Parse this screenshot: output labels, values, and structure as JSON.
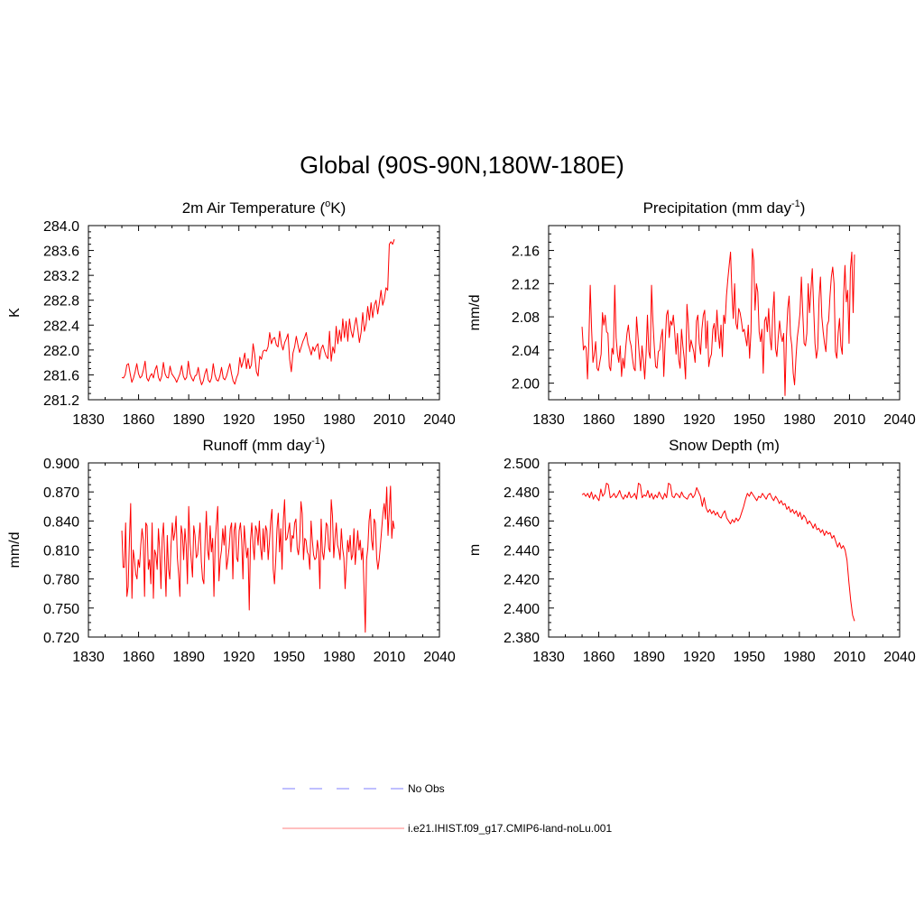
{
  "title": "Global (90S-90N,180W-180E)",
  "colors": {
    "model_line": "#ff0000",
    "obs_line": "#9999ff",
    "axis": "#000000"
  },
  "legend": [
    {
      "label": "No Obs",
      "style": "dashed",
      "color": "#9999ff"
    },
    {
      "label": "i.e21.IHIST.f09_g17.CMIP6-land-noLu.001",
      "style": "solid",
      "color": "#ff0000"
    }
  ],
  "chart_data": [
    {
      "type": "line",
      "title_main": "2m Air Temperature (",
      "title_sup": "o",
      "title_tail": "K)",
      "ylabel": "K",
      "xlim": [
        1830,
        2040
      ],
      "ylim": [
        281.2,
        284.0
      ],
      "xticks": [
        1830,
        1860,
        1890,
        1920,
        1950,
        1980,
        2010,
        2040
      ],
      "yticks": [
        "281.2",
        "281.6",
        "282.0",
        "282.4",
        "282.8",
        "283.2",
        "283.6",
        "284.0"
      ],
      "series": [
        {
          "x_start": 1850,
          "values": [
            281.56,
            281.55,
            281.6,
            281.76,
            281.78,
            281.62,
            281.48,
            281.55,
            281.65,
            281.78,
            281.62,
            281.55,
            281.58,
            281.68,
            281.82,
            281.55,
            281.5,
            281.58,
            281.62,
            281.55,
            281.68,
            281.75,
            281.56,
            281.5,
            281.58,
            281.8,
            281.62,
            281.56,
            281.55,
            281.74,
            281.62,
            281.58,
            281.54,
            281.48,
            281.55,
            281.62,
            281.75,
            281.58,
            281.52,
            281.56,
            281.82,
            281.62,
            281.55,
            281.5,
            281.58,
            281.6,
            281.72,
            281.54,
            281.44,
            281.5,
            281.62,
            281.7,
            281.52,
            281.48,
            281.55,
            281.78,
            281.6,
            281.52,
            281.5,
            281.58,
            281.72,
            281.55,
            281.52,
            281.58,
            281.68,
            281.78,
            281.62,
            281.5,
            281.45,
            281.55,
            281.62,
            281.88,
            281.72,
            281.82,
            281.95,
            281.7,
            281.86,
            281.7,
            281.76,
            282.1,
            281.92,
            281.65,
            281.58,
            281.9,
            281.85,
            281.98,
            282.0,
            281.98,
            282.05,
            282.28,
            282.1,
            282.18,
            282.2,
            282.08,
            282.05,
            282.3,
            282.1,
            282.0,
            282.12,
            282.18,
            282.26,
            281.85,
            281.65,
            281.95,
            282.05,
            282.22,
            282.08,
            281.96,
            282.05,
            282.14,
            282.2,
            282.28,
            282.1,
            282.02,
            281.92,
            282.05,
            281.98,
            282.06,
            282.1,
            281.85,
            282.02,
            282.08,
            281.98,
            281.9,
            281.86,
            282.3,
            281.82,
            282.05,
            281.95,
            282.38,
            282.1,
            282.32,
            282.14,
            282.5,
            282.2,
            282.46,
            282.14,
            282.5,
            282.3,
            282.2,
            282.38,
            282.52,
            282.34,
            282.12,
            282.28,
            282.6,
            282.3,
            282.42,
            282.7,
            282.48,
            282.76,
            282.52,
            282.72,
            282.8,
            282.58,
            282.76,
            282.96,
            282.72,
            282.82,
            283.0,
            282.96,
            283.7,
            283.74,
            283.7,
            283.78
          ]
        }
      ]
    },
    {
      "type": "line",
      "title_main": "Precipitation (mm day",
      "title_sup": "-1",
      "title_tail": ")",
      "ylabel": "mm/d",
      "xlim": [
        1830,
        2040
      ],
      "ylim": [
        1.98,
        2.19
      ],
      "xticks": [
        1830,
        1860,
        1890,
        1920,
        1950,
        1980,
        2010,
        2040
      ],
      "yticks": [
        "2.00",
        "2.04",
        "2.08",
        "2.12",
        "2.16"
      ],
      "series": [
        {
          "x_start": 1850,
          "values": [
            2.068,
            2.04,
            2.045,
            2.043,
            2.005,
            2.05,
            2.118,
            2.065,
            2.025,
            2.035,
            2.05,
            2.018,
            2.015,
            2.025,
            2.035,
            2.085,
            2.07,
            2.082,
            2.062,
            2.06,
            2.02,
            2.015,
            2.042,
            2.035,
            2.118,
            2.055,
            2.035,
            2.025,
            2.045,
            2.008,
            2.03,
            2.018,
            2.042,
            2.06,
            2.07,
            2.052,
            2.045,
            2.03,
            2.018,
            2.015,
            2.08,
            2.058,
            2.035,
            2.015,
            2.045,
            2.028,
            2.005,
            2.035,
            2.082,
            2.038,
            2.03,
            2.118,
            2.075,
            2.045,
            2.02,
            2.018,
            2.038,
            2.04,
            2.055,
            2.065,
            2.008,
            2.048,
            2.082,
            2.088,
            2.055,
            2.075,
            2.07,
            2.082,
            2.062,
            2.035,
            2.06,
            2.028,
            2.018,
            2.065,
            2.045,
            2.03,
            2.005,
            2.095,
            2.072,
            2.038,
            2.052,
            2.045,
            2.038,
            2.025,
            2.075,
            2.082,
            2.048,
            2.035,
            2.065,
            2.082,
            2.088,
            2.042,
            2.075,
            2.02,
            2.03,
            2.035,
            2.065,
            2.072,
            2.05,
            2.088,
            2.06,
            2.042,
            2.07,
            2.032,
            2.082,
            2.072,
            2.105,
            2.125,
            2.142,
            2.158,
            2.11,
            2.078,
            2.12,
            2.072,
            2.065,
            2.09,
            2.085,
            2.075,
            2.062,
            2.065,
            2.055,
            2.045,
            2.07,
            2.03,
            2.062,
            2.162,
            2.148,
            2.088,
            2.12,
            2.11,
            2.062,
            2.05,
            2.065,
            2.012,
            2.075,
            2.08,
            2.062,
            2.09,
            2.055,
            2.04,
            2.085,
            2.11,
            2.042,
            2.032,
            2.055,
            2.075,
            2.058,
            2.05,
            2.06,
            1.985,
            2.055,
            2.09,
            2.105,
            2.058,
            2.045,
            2.012,
            1.998,
            2.03,
            2.055,
            2.068,
            2.085,
            2.128,
            2.085,
            2.048,
            2.045,
            2.06,
            2.12,
            2.085,
            2.112,
            2.138,
            2.092,
            2.048,
            2.03,
            2.042,
            2.102,
            2.128,
            2.08,
            2.062,
            2.048,
            2.038,
            2.07,
            2.075,
            2.105,
            2.128,
            2.14,
            2.12,
            2.038,
            2.03,
            2.06,
            2.078,
            2.045,
            2.035,
            2.105,
            2.142,
            2.098,
            2.112,
            2.048,
            2.138,
            2.158,
            2.085,
            2.155
          ]
        }
      ]
    },
    {
      "type": "line",
      "title_main": "Runoff (mm day",
      "title_sup": "-1",
      "title_tail": ")",
      "ylabel": "mm/d",
      "xlim": [
        1830,
        2040
      ],
      "ylim": [
        0.72,
        0.9
      ],
      "xticks": [
        1830,
        1860,
        1890,
        1920,
        1950,
        1980,
        2010,
        2040
      ],
      "yticks": [
        "0.720",
        "0.750",
        "0.780",
        "0.810",
        "0.840",
        "0.870",
        "0.900"
      ],
      "series": [
        {
          "x_start": 1850,
          "values": [
            0.83,
            0.792,
            0.792,
            0.838,
            0.762,
            0.772,
            0.82,
            0.858,
            0.76,
            0.81,
            0.8,
            0.785,
            0.78,
            0.8,
            0.792,
            0.815,
            0.832,
            0.82,
            0.762,
            0.838,
            0.835,
            0.79,
            0.8,
            0.775,
            0.838,
            0.76,
            0.81,
            0.805,
            0.79,
            0.832,
            0.81,
            0.77,
            0.822,
            0.838,
            0.8,
            0.762,
            0.825,
            0.79,
            0.78,
            0.815,
            0.838,
            0.82,
            0.828,
            0.845,
            0.802,
            0.785,
            0.762,
            0.835,
            0.826,
            0.8,
            0.832,
            0.815,
            0.775,
            0.855,
            0.818,
            0.8,
            0.782,
            0.835,
            0.825,
            0.802,
            0.805,
            0.82,
            0.838,
            0.798,
            0.78,
            0.775,
            0.82,
            0.85,
            0.81,
            0.8,
            0.835,
            0.808,
            0.822,
            0.762,
            0.818,
            0.838,
            0.855,
            0.778,
            0.8,
            0.81,
            0.832,
            0.815,
            0.835,
            0.79,
            0.8,
            0.812,
            0.832,
            0.838,
            0.78,
            0.83,
            0.838,
            0.802,
            0.798,
            0.83,
            0.838,
            0.82,
            0.78,
            0.835,
            0.818,
            0.802,
            0.812,
            0.748,
            0.82,
            0.838,
            0.815,
            0.8,
            0.835,
            0.83,
            0.815,
            0.84,
            0.812,
            0.8,
            0.832,
            0.808,
            0.835,
            0.83,
            0.8,
            0.818,
            0.84,
            0.852,
            0.79,
            0.775,
            0.8,
            0.832,
            0.848,
            0.808,
            0.832,
            0.79,
            0.84,
            0.862,
            0.82,
            0.822,
            0.83,
            0.838,
            0.808,
            0.825,
            0.822,
            0.838,
            0.842,
            0.812,
            0.805,
            0.82,
            0.86,
            0.848,
            0.8,
            0.822,
            0.82,
            0.808,
            0.805,
            0.79,
            0.84,
            0.82,
            0.805,
            0.8,
            0.802,
            0.82,
            0.808,
            0.77,
            0.842,
            0.808,
            0.8,
            0.815,
            0.838,
            0.835,
            0.812,
            0.808,
            0.862,
            0.845,
            0.802,
            0.822,
            0.838,
            0.815,
            0.81,
            0.8,
            0.832,
            0.812,
            0.802,
            0.77,
            0.795,
            0.82,
            0.808,
            0.825,
            0.8,
            0.805,
            0.832,
            0.795,
            0.812,
            0.83,
            0.81,
            0.82,
            0.8,
            0.812,
            0.77,
            0.725,
            0.8,
            0.812,
            0.84,
            0.852,
            0.82,
            0.81,
            0.842,
            0.838,
            0.802,
            0.79,
            0.8,
            0.815,
            0.832,
            0.848,
            0.858,
            0.842,
            0.875,
            0.825,
            0.85,
            0.876,
            0.822,
            0.84,
            0.832
          ]
        }
      ]
    },
    {
      "type": "line",
      "title_main": "Snow Depth (m)",
      "title_sup": "",
      "title_tail": "",
      "ylabel": "m",
      "xlim": [
        1830,
        2040
      ],
      "ylim": [
        2.38,
        2.5
      ],
      "xticks": [
        1830,
        1860,
        1890,
        1920,
        1950,
        1980,
        2010,
        2040
      ],
      "yticks": [
        "2.380",
        "2.400",
        "2.420",
        "2.440",
        "2.460",
        "2.480",
        "2.500"
      ],
      "series": [
        {
          "x_start": 1850,
          "values": [
            2.478,
            2.479,
            2.477,
            2.479,
            2.476,
            2.48,
            2.475,
            2.478,
            2.476,
            2.474,
            2.482,
            2.477,
            2.479,
            2.486,
            2.485,
            2.476,
            2.477,
            2.479,
            2.476,
            2.478,
            2.481,
            2.477,
            2.475,
            2.478,
            2.476,
            2.48,
            2.476,
            2.477,
            2.479,
            2.475,
            2.486,
            2.485,
            2.476,
            2.478,
            2.477,
            2.481,
            2.476,
            2.479,
            2.475,
            2.478,
            2.476,
            2.48,
            2.477,
            2.475,
            2.479,
            2.476,
            2.486,
            2.485,
            2.477,
            2.476,
            2.479,
            2.478,
            2.476,
            2.48,
            2.477,
            2.476,
            2.475,
            2.478,
            2.479,
            2.476,
            2.478,
            2.483,
            2.48,
            2.477,
            2.47,
            2.476,
            2.469,
            2.466,
            2.468,
            2.465,
            2.467,
            2.464,
            2.466,
            2.463,
            2.462,
            2.465,
            2.467,
            2.462,
            2.46,
            2.458,
            2.461,
            2.459,
            2.462,
            2.46,
            2.462,
            2.466,
            2.47,
            2.475,
            2.479,
            2.477,
            2.48,
            2.478,
            2.476,
            2.474,
            2.477,
            2.476,
            2.479,
            2.477,
            2.475,
            2.478,
            2.479,
            2.476,
            2.474,
            2.477,
            2.475,
            2.472,
            2.474,
            2.471,
            2.472,
            2.468,
            2.47,
            2.466,
            2.468,
            2.465,
            2.467,
            2.463,
            2.466,
            2.461,
            2.464,
            2.462,
            2.458,
            2.46,
            2.458,
            2.455,
            2.458,
            2.454,
            2.455,
            2.452,
            2.454,
            2.45,
            2.453,
            2.451,
            2.452,
            2.448,
            2.45,
            2.446,
            2.442,
            2.445,
            2.441,
            2.443,
            2.44,
            2.433,
            2.418,
            2.405,
            2.395,
            2.391
          ]
        }
      ]
    }
  ]
}
